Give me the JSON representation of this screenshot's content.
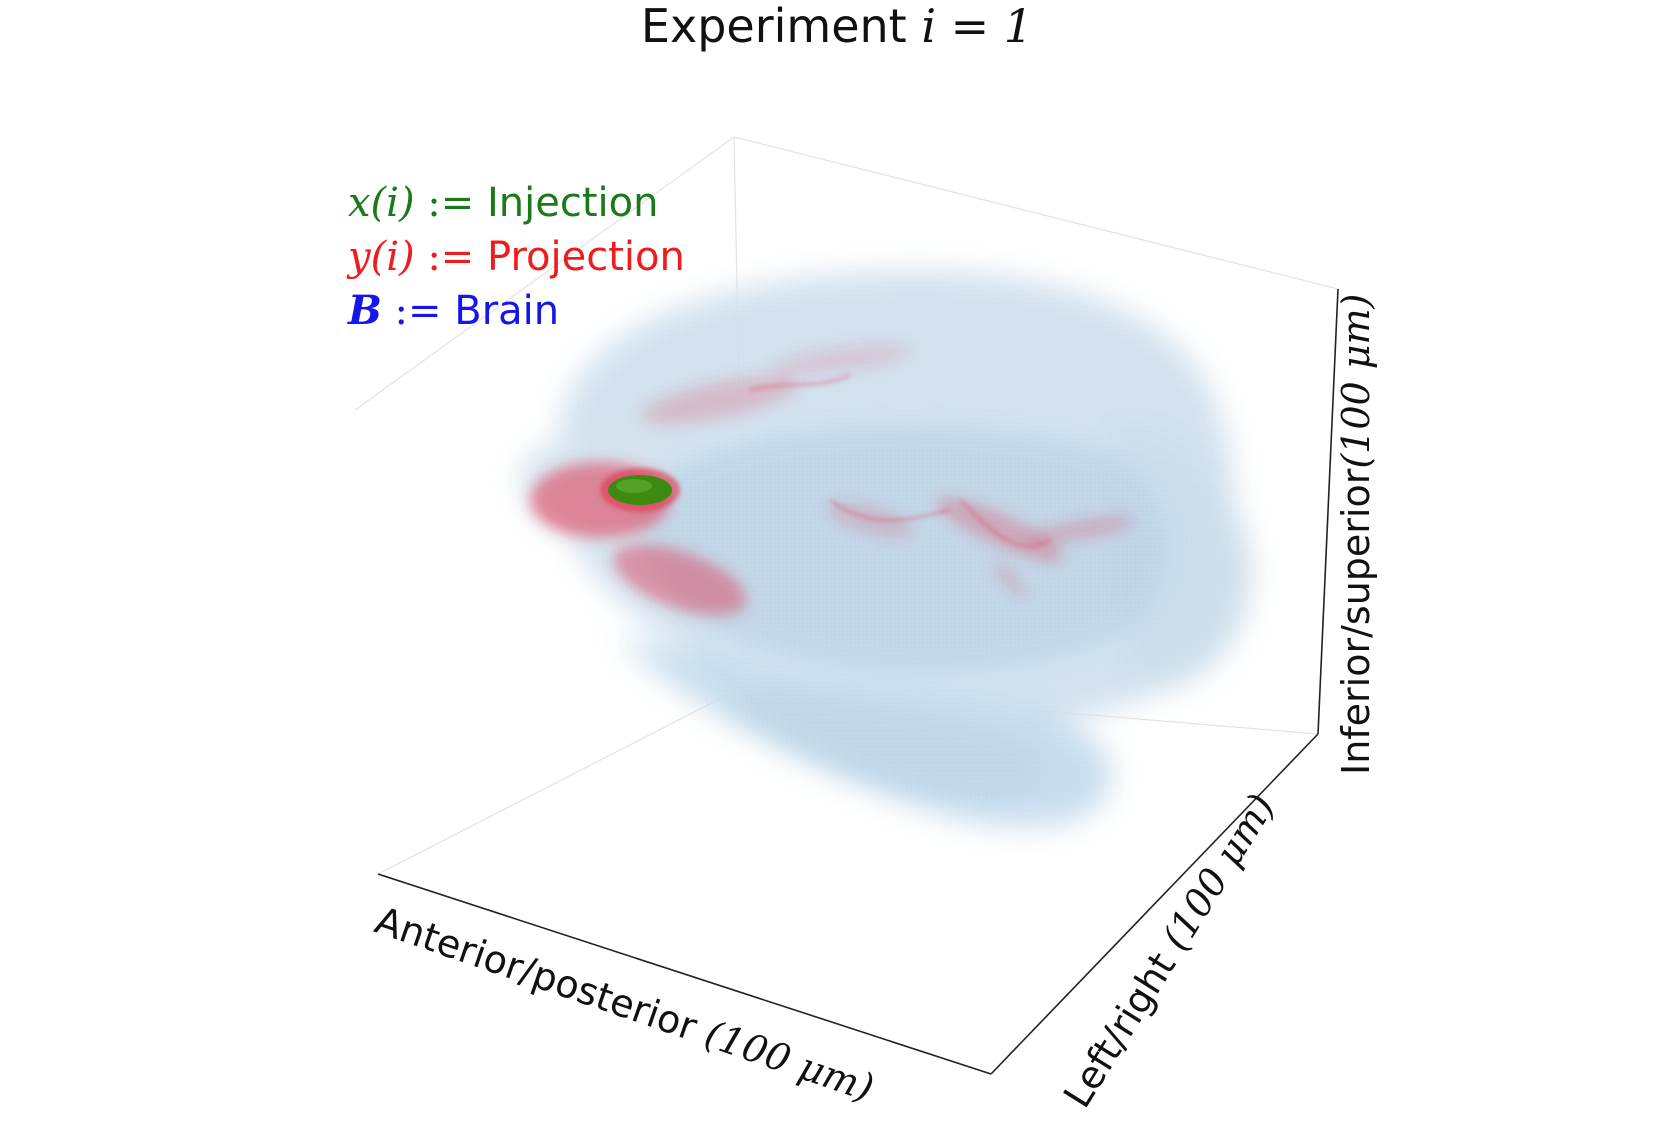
{
  "title": {
    "prefix": "Experiment ",
    "math": "i = 1"
  },
  "legend": [
    {
      "symbol": "x(i)",
      "operator": ":=",
      "text": "Injection",
      "color": "#1a7a1a"
    },
    {
      "symbol": "y(i)",
      "operator": ":=",
      "text": "Projection",
      "color": "#ee1c1c"
    },
    {
      "symbol": "B",
      "operator": ":=",
      "text": "Brain",
      "color": "#1515ee"
    }
  ],
  "axes": {
    "x": {
      "text": "Anterior/posterior ",
      "unit": "(100 μm)"
    },
    "y": {
      "text": "Left/right ",
      "unit": "(100 μm)"
    },
    "z": {
      "text": "Inferior/superior",
      "unit": "(100 μm)"
    }
  },
  "colors": {
    "brain": "#b9d3e6",
    "projection": "#e0354f",
    "injection": "#3d8a12",
    "axis": "#222222",
    "gridline": "#e2e2e2"
  }
}
